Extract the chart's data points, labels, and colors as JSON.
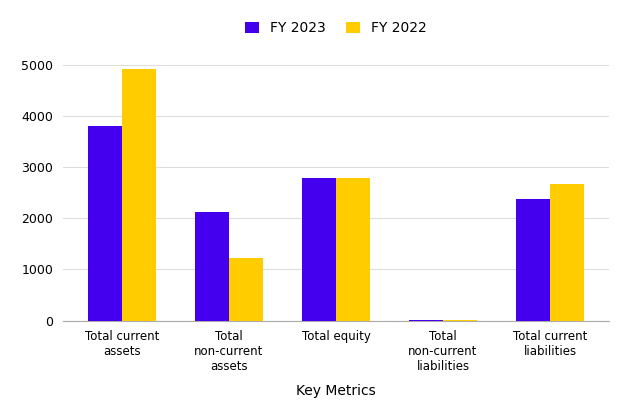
{
  "categories": [
    "Total current\nassets",
    "Total\nnon-current\nassets",
    "Total equity",
    "Total\nnon-current\nliabilities",
    "Total current\nliabilities"
  ],
  "fy2023": [
    3800,
    2120,
    2780,
    5,
    2380
  ],
  "fy2022": [
    4920,
    1230,
    2780,
    5,
    2670
  ],
  "bar_color_2023": "#4400ee",
  "bar_color_2022": "#ffcc00",
  "legend_labels": [
    "FY 2023",
    "FY 2022"
  ],
  "xlabel": "Key Metrics",
  "ylabel": "",
  "ylim": [
    0,
    5300
  ],
  "yticks": [
    0,
    1000,
    2000,
    3000,
    4000,
    5000
  ],
  "bar_width": 0.32,
  "background_color": "#ffffff",
  "grid_color": "#dddddd",
  "figsize": [
    6.28,
    4.11
  ],
  "dpi": 100
}
